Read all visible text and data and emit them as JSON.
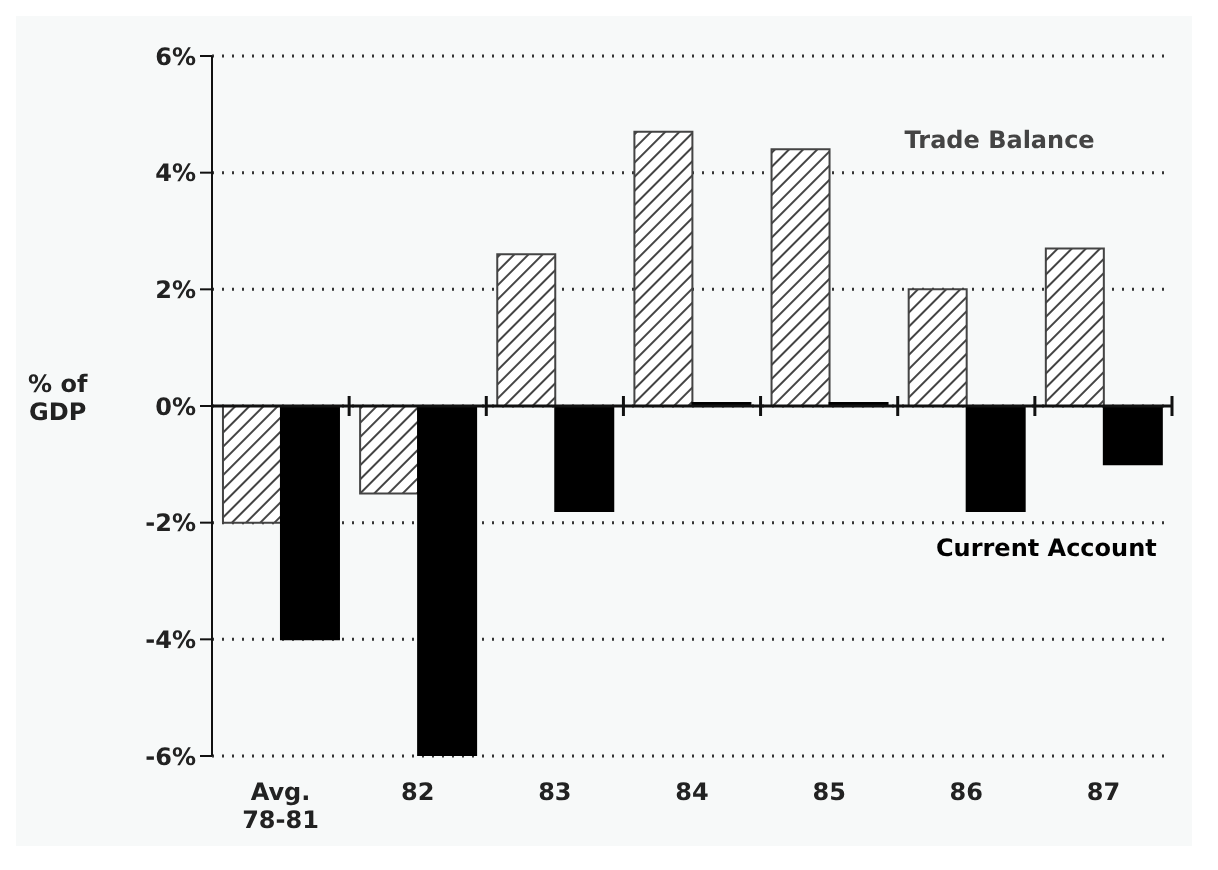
{
  "chart_data": {
    "type": "bar",
    "ylabel": "% of\nGDP",
    "categories": [
      "Avg.\n78-81",
      "82",
      "83",
      "84",
      "85",
      "86",
      "87"
    ],
    "series": [
      {
        "name": "Trade Balance",
        "color": "#444444",
        "values": [
          -2.0,
          -1.5,
          2.6,
          4.7,
          4.4,
          2.0,
          2.7
        ]
      },
      {
        "name": "Current Account",
        "color": "#000000",
        "values": [
          -4.0,
          -6.0,
          -1.8,
          0.05,
          0.05,
          -1.8,
          -1.0
        ]
      }
    ],
    "ylim": [
      -6,
      6
    ],
    "yticks": [
      {
        "value": -6,
        "label": "-6%"
      },
      {
        "value": -4,
        "label": "-4%"
      },
      {
        "value": -2,
        "label": "-2%"
      },
      {
        "value": 0,
        "label": "0%"
      },
      {
        "value": 2,
        "label": "2%"
      },
      {
        "value": 4,
        "label": "4%"
      },
      {
        "value": 6,
        "label": "6%"
      }
    ],
    "grid": "y"
  }
}
